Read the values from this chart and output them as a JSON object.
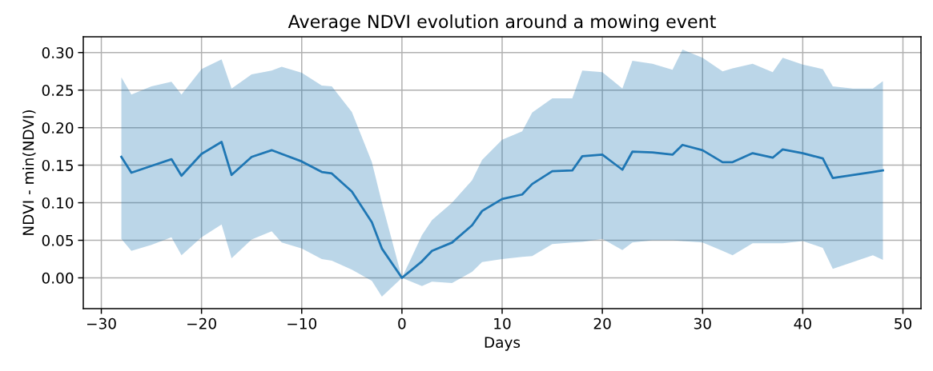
{
  "chart_data": {
    "type": "line",
    "title": "Average NDVI evolution around a mowing event",
    "xlabel": "Days",
    "ylabel": "NDVI - min(NDVI)",
    "x": [
      -28,
      -27,
      -25,
      -23,
      -22,
      -20,
      -18,
      -17,
      -15,
      -13,
      -12,
      -10,
      -8,
      -7,
      -5,
      -3,
      -2,
      0,
      2,
      3,
      5,
      7,
      8,
      10,
      12,
      13,
      15,
      17,
      18,
      20,
      22,
      23,
      25,
      27,
      28,
      30,
      32,
      33,
      35,
      37,
      38,
      40,
      42,
      43,
      45,
      47,
      48
    ],
    "series": [
      {
        "color": "#1f77b4",
        "values": [
          0.161,
          0.14,
          0.149,
          0.158,
          0.136,
          0.165,
          0.181,
          0.137,
          0.161,
          0.17,
          0.165,
          0.155,
          0.141,
          0.139,
          0.115,
          0.074,
          0.039,
          0.0,
          0.022,
          0.036,
          0.047,
          0.07,
          0.089,
          0.105,
          0.111,
          0.125,
          0.142,
          0.143,
          0.162,
          0.164,
          0.144,
          0.168,
          0.167,
          0.164,
          0.177,
          0.17,
          0.154,
          0.154,
          0.166,
          0.16,
          0.171,
          0.166,
          0.159,
          0.133,
          0.137,
          0.141,
          0.143
        ],
        "upper": [
          0.267,
          0.244,
          0.255,
          0.261,
          0.244,
          0.278,
          0.291,
          0.252,
          0.271,
          0.276,
          0.281,
          0.273,
          0.256,
          0.255,
          0.221,
          0.154,
          0.1,
          0.0,
          0.057,
          0.077,
          0.1,
          0.13,
          0.157,
          0.184,
          0.195,
          0.22,
          0.239,
          0.239,
          0.276,
          0.274,
          0.252,
          0.289,
          0.285,
          0.277,
          0.304,
          0.293,
          0.275,
          0.279,
          0.285,
          0.274,
          0.293,
          0.284,
          0.278,
          0.255,
          0.252,
          0.252,
          0.262
        ],
        "lower": [
          0.052,
          0.036,
          0.044,
          0.054,
          0.03,
          0.054,
          0.071,
          0.026,
          0.051,
          0.062,
          0.047,
          0.039,
          0.025,
          0.023,
          0.011,
          -0.004,
          -0.025,
          0.0,
          -0.011,
          -0.005,
          -0.007,
          0.008,
          0.021,
          0.025,
          0.028,
          0.029,
          0.045,
          0.047,
          0.048,
          0.052,
          0.037,
          0.047,
          0.05,
          0.05,
          0.049,
          0.047,
          0.036,
          0.03,
          0.046,
          0.046,
          0.046,
          0.049,
          0.04,
          0.012,
          0.021,
          0.03,
          0.024
        ]
      }
    ],
    "xlim": [
      -31.8,
      51.8
    ],
    "ylim": [
      -0.041,
      0.321
    ],
    "xticks": [
      {
        "value": -30,
        "label": "−30"
      },
      {
        "value": -20,
        "label": "−20"
      },
      {
        "value": -10,
        "label": "−10"
      },
      0,
      10,
      20,
      30,
      40,
      50
    ],
    "yticks": [
      {
        "value": 0,
        "label": "0.00"
      },
      {
        "value": 0.05,
        "label": "0.05"
      },
      {
        "value": 0.1,
        "label": "0.10"
      },
      {
        "value": 0.15,
        "label": "0.15"
      },
      {
        "value": 0.2,
        "label": "0.20"
      },
      {
        "value": 0.25,
        "label": "0.25"
      },
      {
        "value": 0.3,
        "label": "0.30"
      }
    ],
    "grid": true
  }
}
